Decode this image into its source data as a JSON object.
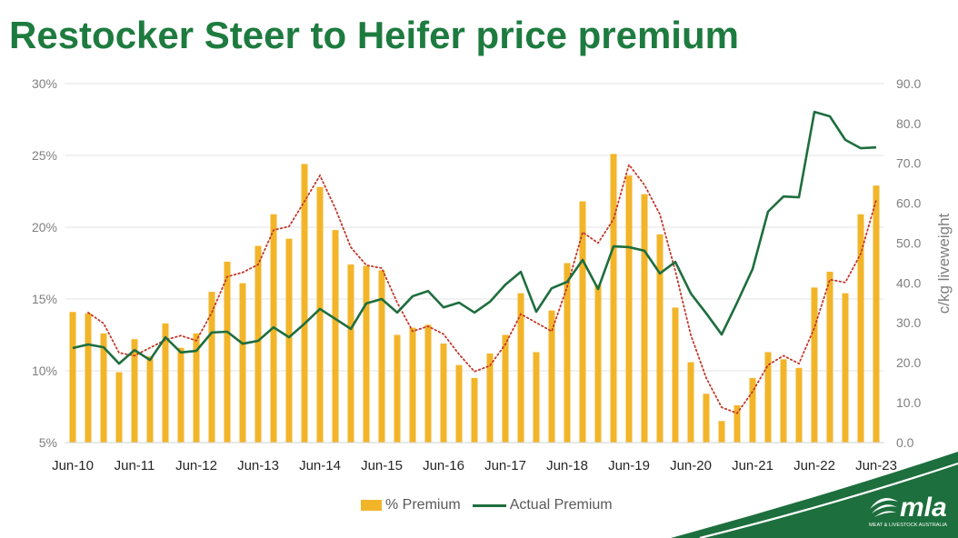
{
  "colors": {
    "title": "#1e7b3f",
    "brand_green": "#1d6f3d",
    "gridline": "#e3e3e3",
    "axis": "#d0d0d0"
  },
  "logo": {
    "name": "mla",
    "tagline": "MEAT & LIVESTOCK AUSTRALIA"
  },
  "chart_data": {
    "type": "bar",
    "title": "Restocker Steer to Heifer price premium",
    "x": [
      "Jun-10",
      "",
      "",
      "",
      "Jun-11",
      "",
      "",
      "",
      "Jun-12",
      "",
      "",
      "",
      "Jun-13",
      "",
      "",
      "",
      "Jun-14",
      "",
      "",
      "",
      "Jun-15",
      "",
      "",
      "",
      "Jun-16",
      "",
      "",
      "",
      "Jun-17",
      "",
      "",
      "",
      "Jun-18",
      "",
      "",
      "",
      "Jun-19",
      "",
      "",
      "",
      "Jun-20",
      "",
      "",
      "",
      "Jun-21",
      "",
      "",
      "",
      "Jun-22",
      "",
      "",
      "",
      "Jun-23"
    ],
    "y2label": "c/kg liveweight",
    "ylim": [
      5,
      30
    ],
    "y2lim": [
      0,
      90
    ],
    "y_ticks": [
      "5%",
      "10%",
      "15%",
      "20%",
      "25%",
      "30%"
    ],
    "y2_ticks": [
      "0.0",
      "10.0",
      "20.0",
      "30.0",
      "40.0",
      "50.0",
      "60.0",
      "70.0",
      "80.0",
      "90.0"
    ],
    "grid": true,
    "legend_position": "bottom",
    "series": [
      {
        "name": "% Premium",
        "type": "bar",
        "axis": "left",
        "color": "#f2b52a",
        "values": [
          14.1,
          14.0,
          12.6,
          9.9,
          12.2,
          11.0,
          13.3,
          11.6,
          12.6,
          15.5,
          17.6,
          16.1,
          18.7,
          20.9,
          19.2,
          24.4,
          22.8,
          19.8,
          17.4,
          17.3,
          17.0,
          12.5,
          13.0,
          13.2,
          11.9,
          10.4,
          9.5,
          11.2,
          12.5,
          15.4,
          11.3,
          14.2,
          17.5,
          21.8,
          16.0,
          25.1,
          23.6,
          22.3,
          19.5,
          14.4,
          10.6,
          8.4,
          6.5,
          7.6,
          9.5,
          11.3,
          10.8,
          10.2,
          15.8,
          16.9,
          15.4,
          20.9,
          22.9
        ]
      },
      {
        "name": "Actual Premium",
        "type": "line",
        "axis": "right",
        "color": "#1e6e3e",
        "values": [
          23.7,
          24.6,
          23.9,
          19.8,
          23.2,
          20.7,
          26.4,
          22.6,
          23.0,
          27.6,
          27.8,
          24.8,
          25.5,
          28.9,
          26.4,
          29.8,
          33.5,
          31.0,
          28.5,
          34.9,
          36.0,
          32.6,
          36.7,
          38.0,
          33.9,
          35.1,
          32.6,
          35.3,
          39.6,
          42.8,
          32.8,
          38.7,
          40.3,
          45.8,
          38.5,
          49.2,
          49.0,
          48.1,
          42.4,
          45.3,
          37.4,
          32.4,
          27.1,
          35.1,
          43.5,
          57.9,
          61.7,
          61.5,
          82.9,
          81.8,
          75.9,
          73.8,
          74.0
        ]
      },
      {
        "type": "line",
        "style": "dotted",
        "axis": "left",
        "color": "#c0392b",
        "values": [
          null,
          14.05,
          13.3,
          11.25,
          11.05,
          11.6,
          12.15,
          12.45,
          12.1,
          14.05,
          16.55,
          16.85,
          17.4,
          19.8,
          20.05,
          21.8,
          23.6,
          21.3,
          18.6,
          17.35,
          17.15,
          14.75,
          12.75,
          13.1,
          12.55,
          11.15,
          9.95,
          10.35,
          11.85,
          13.95,
          13.35,
          12.75,
          15.85,
          19.65,
          18.9,
          20.55,
          24.35,
          22.95,
          20.9,
          16.95,
          12.5,
          9.5,
          7.45,
          7.05,
          8.55,
          10.4,
          11.05,
          10.5,
          13.0,
          16.35,
          16.15,
          18.15,
          21.9
        ]
      }
    ]
  }
}
